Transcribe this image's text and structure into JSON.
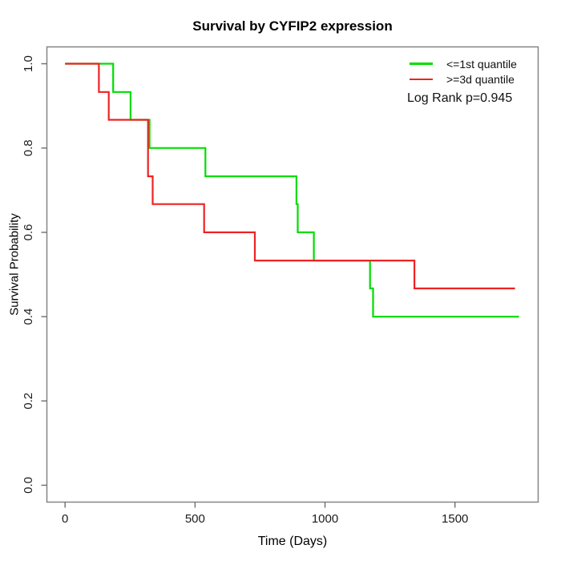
{
  "title": "Survival by CYFIP2 expression",
  "axes": {
    "x": {
      "label": "Time (Days)",
      "ticks": [
        {
          "value": 0,
          "label": "0"
        },
        {
          "value": 500,
          "label": "500"
        },
        {
          "value": 1000,
          "label": "1000"
        },
        {
          "value": 1500,
          "label": "1500"
        }
      ]
    },
    "y": {
      "label": "Survival Probability",
      "ticks": [
        {
          "value": 0.0,
          "label": "0.0"
        },
        {
          "value": 0.2,
          "label": "0.2"
        },
        {
          "value": 0.4,
          "label": "0.4"
        },
        {
          "value": 0.6,
          "label": "0.6"
        },
        {
          "value": 0.8,
          "label": "0.8"
        },
        {
          "value": 1.0,
          "label": "1.0"
        }
      ]
    }
  },
  "legend": {
    "items": [
      {
        "label": "<=1st quantile",
        "color": "#00DD00"
      },
      {
        "label": ">=3d quantile",
        "color": "#EE2222"
      }
    ],
    "note": "Log Rank p=0.945"
  },
  "chart_data": {
    "type": "line",
    "subtype": "kaplan-meier-step",
    "title": "Survival by CYFIP2 expression",
    "xlabel": "Time (Days)",
    "ylabel": "Survival Probability",
    "xlim": [
      0,
      1750
    ],
    "ylim": [
      0,
      1
    ],
    "axis_expansion": 0.04,
    "x_ticks": [
      0,
      500,
      1000,
      1500
    ],
    "y_ticks": [
      0.0,
      0.2,
      0.4,
      0.6,
      0.8,
      1.0
    ],
    "grid": false,
    "legend_position": "top-right",
    "annotation": "Log Rank p=0.945",
    "series": [
      {
        "name": "<=1st quantile",
        "color": "#00DD00",
        "steps": [
          [
            0,
            1.0
          ],
          [
            185,
            0.933
          ],
          [
            252,
            0.867
          ],
          [
            325,
            0.8
          ],
          [
            540,
            0.733
          ],
          [
            890,
            0.667
          ],
          [
            895,
            0.6
          ],
          [
            957,
            0.533
          ],
          [
            1173,
            0.467
          ],
          [
            1185,
            0.4
          ]
        ],
        "end_time": 1746
      },
      {
        "name": ">=3d quantile",
        "color": "#EE2222",
        "steps": [
          [
            0,
            1.0
          ],
          [
            130,
            0.933
          ],
          [
            168,
            0.867
          ],
          [
            319,
            0.733
          ],
          [
            337,
            0.667
          ],
          [
            535,
            0.6
          ],
          [
            730,
            0.533
          ],
          [
            1344,
            0.467
          ]
        ],
        "end_time": 1731
      }
    ]
  }
}
